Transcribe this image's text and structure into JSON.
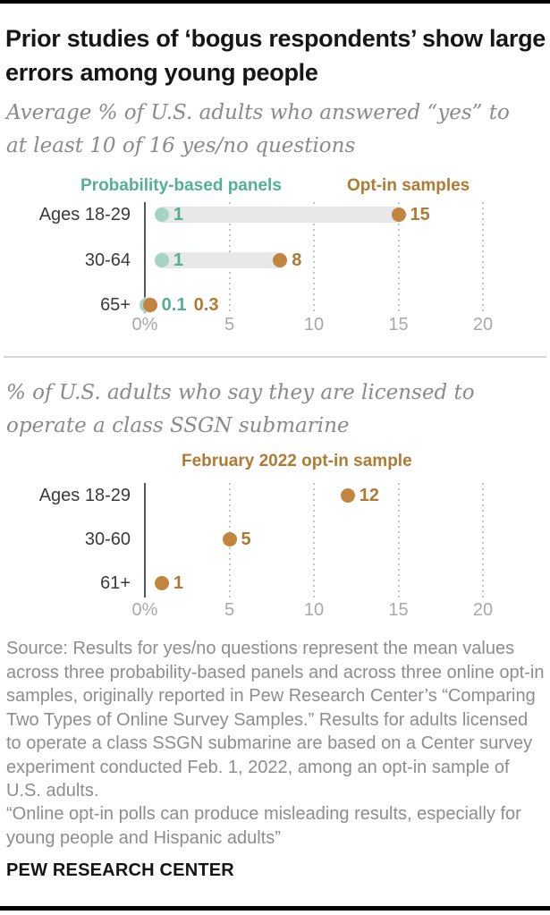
{
  "header": {
    "title": "Prior studies of ‘bogus respondents’ show large errors among young people"
  },
  "charts": [
    {
      "subtitle": "Average % of U.S. adults who answered “yes” to at least 10 of 16 yes/no questions",
      "chart_data": {
        "type": "scatter",
        "variant": "dumbbell-dot-plot",
        "categories": [
          "Ages 18-29",
          "30-64",
          "65+"
        ],
        "series": [
          {
            "name": "Probability-based panels",
            "values": [
              1,
              1,
              0.1
            ],
            "labels": [
              "1",
              "1",
              "0.1"
            ],
            "dot_color": "#a4d5c2",
            "text_color": "#53b097"
          },
          {
            "name": "Opt-in samples",
            "values": [
              15,
              8,
              0.3
            ],
            "labels": [
              "15",
              "8",
              "0.3"
            ],
            "dot_color": "#c18540",
            "text_color": "#b17a33"
          }
        ],
        "xlim": [
          0,
          20
        ],
        "x_ticks": [
          {
            "value": 0,
            "label": "0%"
          },
          {
            "value": 5,
            "label": "5"
          },
          {
            "value": 10,
            "label": "10"
          },
          {
            "value": 15,
            "label": "15"
          },
          {
            "value": 20,
            "label": "20"
          }
        ],
        "connector": true,
        "grid": "dotted-vertical",
        "legend_position": "top"
      }
    },
    {
      "subtitle": "% of U.S. adults who say they are licensed to operate a class SSGN submarine",
      "chart_data": {
        "type": "scatter",
        "variant": "dot-plot",
        "categories": [
          "Ages 18-29",
          "30-60",
          "61+"
        ],
        "series": [
          {
            "name": "February 2022 opt-in sample",
            "values": [
              12,
              5,
              1
            ],
            "labels": [
              "12",
              "5",
              "1"
            ],
            "dot_color": "#c18540",
            "text_color": "#b17a33"
          }
        ],
        "xlim": [
          0,
          20
        ],
        "x_ticks": [
          {
            "value": 0,
            "label": "0%"
          },
          {
            "value": 5,
            "label": "5"
          },
          {
            "value": 10,
            "label": "10"
          },
          {
            "value": 15,
            "label": "15"
          },
          {
            "value": 20,
            "label": "20"
          }
        ],
        "connector": false,
        "grid": "dotted-vertical",
        "legend_position": "top"
      }
    }
  ],
  "footer": {
    "source": "Source: Results for yes/no questions represent the mean values across three probability-based panels and across three online opt-in samples, originally reported in Pew Research Center’s “Comparing Two Types of Online Survey Samples.” Results for adults licensed to operate a class SSGN submarine are based on a Center survey experiment conducted Feb. 1, 2022, among an opt-in sample of U.S. adults.",
    "quote": "“Online opt-in polls can produce misleading results, especially for young people and Hispanic adults”",
    "brand": "PEW RESEARCH CENTER"
  },
  "colors": {
    "probability_panel_teal": "#53b097",
    "opt_in_orange": "#b17a33",
    "connector_gray": "#e7e9e9",
    "bar_black": "#010101"
  }
}
